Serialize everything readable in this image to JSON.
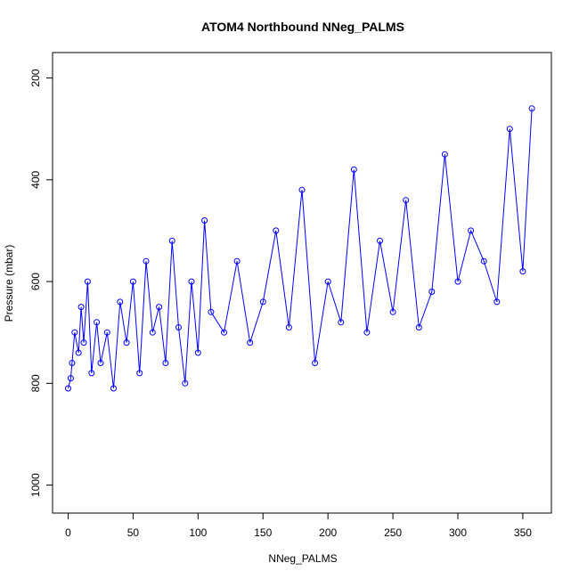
{
  "chart_data": {
    "type": "scatter",
    "title": "ATOM4 Northbound NNeg_PALMS",
    "xlabel": "NNeg_PALMS",
    "ylabel": "Pressure (mbar)",
    "xlim": [
      -12,
      372
    ],
    "ylim": [
      1055,
      150
    ],
    "y_reversed": true,
    "grid": false,
    "connected_points": true,
    "marker": "open-circle",
    "color": "#0000ff",
    "xticks": [
      {
        "value": 0,
        "label": "0"
      },
      {
        "value": 50,
        "label": "50"
      },
      {
        "value": 100,
        "label": "100"
      },
      {
        "value": 150,
        "label": "150"
      },
      {
        "value": 200,
        "label": "200"
      },
      {
        "value": 250,
        "label": "250"
      },
      {
        "value": 300,
        "label": "300"
      },
      {
        "value": 350,
        "label": "350"
      }
    ],
    "yticks": [
      {
        "value": 200,
        "label": "200"
      },
      {
        "value": 400,
        "label": "400"
      },
      {
        "value": 600,
        "label": "600"
      },
      {
        "value": 800,
        "label": "800"
      },
      {
        "value": 1000,
        "label": "1000"
      }
    ],
    "x": [
      0,
      2,
      3,
      5,
      8,
      10,
      12,
      15,
      18,
      22,
      25,
      30,
      35,
      40,
      45,
      50,
      55,
      60,
      65,
      70,
      75,
      80,
      85,
      90,
      95,
      100,
      105,
      110,
      120,
      130,
      140,
      150,
      160,
      170,
      180,
      190,
      200,
      210,
      220,
      230,
      240,
      250,
      260,
      270,
      280,
      290,
      300,
      310,
      320,
      330,
      340,
      350,
      357
    ],
    "y": [
      810,
      790,
      760,
      700,
      740,
      650,
      720,
      600,
      780,
      680,
      760,
      700,
      810,
      640,
      720,
      600,
      780,
      560,
      700,
      650,
      760,
      520,
      690,
      800,
      600,
      740,
      480,
      660,
      700,
      560,
      720,
      640,
      500,
      690,
      420,
      760,
      600,
      680,
      380,
      700,
      520,
      660,
      440,
      690,
      620,
      350,
      600,
      500,
      560,
      640,
      300,
      580,
      260
    ]
  }
}
